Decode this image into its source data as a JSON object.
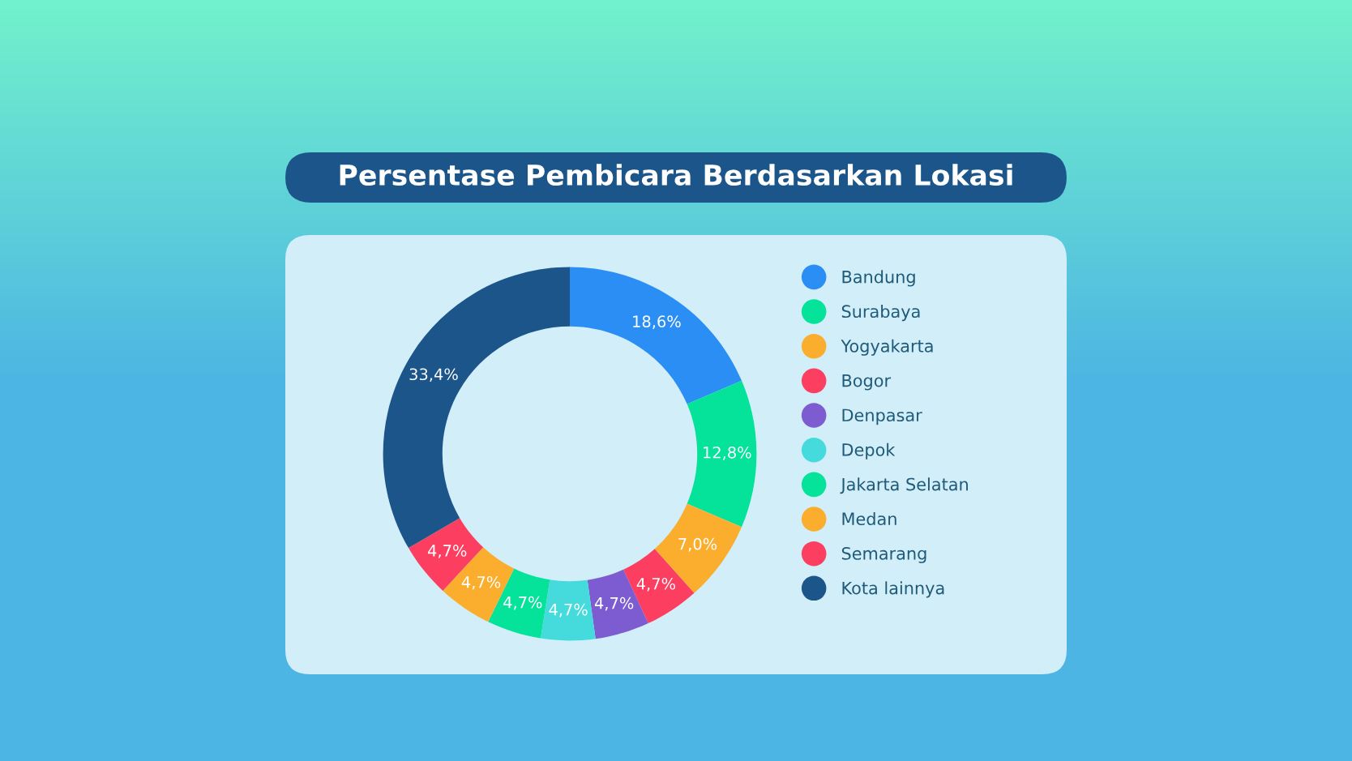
{
  "chart_data": {
    "type": "donut",
    "title": "Persentase Pembicara Berdasarkan Lokasi",
    "categories": [
      "Bandung",
      "Surabaya",
      "Yogyakarta",
      "Bogor",
      "Denpasar",
      "Depok",
      "Jakarta Selatan",
      "Medan",
      "Semarang",
      "Kota lainnya"
    ],
    "values": [
      18.6,
      12.8,
      7.0,
      4.7,
      4.7,
      4.7,
      4.7,
      4.7,
      4.7,
      33.4
    ],
    "value_labels": [
      "18,6%",
      "12,8%",
      "7,0%",
      "4,7%",
      "4,7%",
      "4,7%",
      "4,7%",
      "4,7%",
      "4,7%",
      "33,4%"
    ],
    "colors": [
      "#2b8ef5",
      "#05e29a",
      "#fbae2e",
      "#fc3f61",
      "#7d5bd0",
      "#45dbdc",
      "#05e29a",
      "#fbae2e",
      "#fc3f61",
      "#1b5589"
    ],
    "legend": "right"
  }
}
